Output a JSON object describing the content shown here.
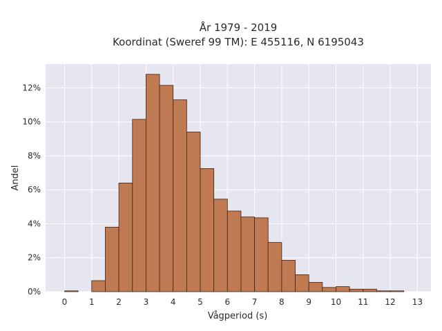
{
  "chart_data": {
    "type": "bar",
    "title_line1": "År 1979 - 2019",
    "title_line2": "Koordinat (Sweref 99 TM): E 455116, N 6195043",
    "xlabel": "Vågperiod (s)",
    "ylabel": "Andel",
    "bin_width": 0.5,
    "bins": [
      {
        "x0": 0.0,
        "value": 0.05
      },
      {
        "x0": 0.5,
        "value": 0.0
      },
      {
        "x0": 1.0,
        "value": 0.65
      },
      {
        "x0": 1.5,
        "value": 3.8
      },
      {
        "x0": 2.0,
        "value": 6.4
      },
      {
        "x0": 2.5,
        "value": 10.15
      },
      {
        "x0": 3.0,
        "value": 12.8
      },
      {
        "x0": 3.5,
        "value": 12.15
      },
      {
        "x0": 4.0,
        "value": 11.3
      },
      {
        "x0": 4.5,
        "value": 9.4
      },
      {
        "x0": 5.0,
        "value": 7.25
      },
      {
        "x0": 5.5,
        "value": 5.45
      },
      {
        "x0": 6.0,
        "value": 4.75
      },
      {
        "x0": 6.5,
        "value": 4.4
      },
      {
        "x0": 7.0,
        "value": 4.35
      },
      {
        "x0": 7.5,
        "value": 2.9
      },
      {
        "x0": 8.0,
        "value": 1.85
      },
      {
        "x0": 8.5,
        "value": 1.0
      },
      {
        "x0": 9.0,
        "value": 0.55
      },
      {
        "x0": 9.5,
        "value": 0.25
      },
      {
        "x0": 10.0,
        "value": 0.3
      },
      {
        "x0": 10.5,
        "value": 0.15
      },
      {
        "x0": 11.0,
        "value": 0.15
      },
      {
        "x0": 11.5,
        "value": 0.05
      },
      {
        "x0": 12.0,
        "value": 0.05
      }
    ],
    "xlim": [
      -0.7,
      13.5
    ],
    "ylim": [
      0,
      13.4
    ],
    "x_ticks": [
      "0",
      "1",
      "2",
      "3",
      "4",
      "5",
      "6",
      "7",
      "8",
      "9",
      "10",
      "11",
      "12",
      "13"
    ],
    "y_ticks": [
      {
        "value": 0,
        "label": "0%"
      },
      {
        "value": 2,
        "label": "2%"
      },
      {
        "value": 4,
        "label": "4%"
      },
      {
        "value": 6,
        "label": "6%"
      },
      {
        "value": 8,
        "label": "8%"
      },
      {
        "value": 10,
        "label": "10%"
      },
      {
        "value": 12,
        "label": "12%"
      }
    ],
    "grid": true,
    "colors": {
      "bar_fill": "#bf7a52",
      "bar_stroke": "#3b2418",
      "plot_bg": "#e5e6f0",
      "grid": "#ffffff"
    }
  }
}
